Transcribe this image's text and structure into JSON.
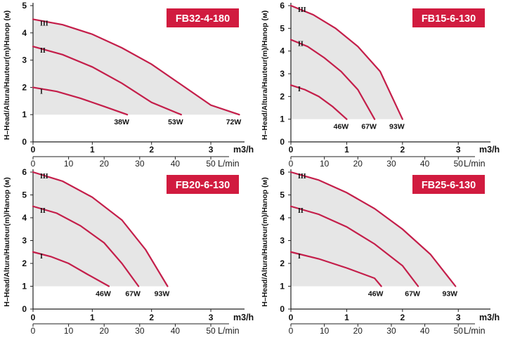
{
  "chart_data": [
    {
      "type": "line",
      "model": "FB32-4-180",
      "ylabel": "H–Head/Altura/Hauteur(m)/Hanop (м)",
      "x_m3h": {
        "label": "m3/h",
        "ticks": [
          0,
          1,
          2,
          3
        ],
        "lim": [
          0,
          3.45
        ]
      },
      "x_lmin": {
        "label": "L/min",
        "ticks": [
          0,
          10,
          20,
          30,
          40,
          50
        ],
        "lim": [
          0,
          57.5
        ]
      },
      "ylim": [
        0,
        5
      ],
      "yticks": [
        0,
        1,
        2,
        3,
        4,
        5
      ],
      "series": [
        {
          "name": "I",
          "power": "38W",
          "points": [
            [
              0,
              2.0
            ],
            [
              0.4,
              1.85
            ],
            [
              0.8,
              1.6
            ],
            [
              1.2,
              1.3
            ],
            [
              1.59,
              1.0
            ]
          ]
        },
        {
          "name": "II",
          "power": "53W",
          "points": [
            [
              0,
              3.5
            ],
            [
              0.5,
              3.2
            ],
            [
              1.0,
              2.75
            ],
            [
              1.5,
              2.15
            ],
            [
              2.0,
              1.45
            ],
            [
              2.5,
              1.0
            ]
          ]
        },
        {
          "name": "III",
          "power": "72W",
          "points": [
            [
              0,
              4.5
            ],
            [
              0.5,
              4.3
            ],
            [
              1.0,
              3.95
            ],
            [
              1.5,
              3.45
            ],
            [
              2.0,
              2.85
            ],
            [
              2.5,
              2.1
            ],
            [
              3.0,
              1.35
            ],
            [
              3.48,
              1.0
            ]
          ]
        }
      ]
    },
    {
      "type": "line",
      "model": "FB15-6-130",
      "ylabel": "H–Head/Altura/Hauteur(m)/Hanop (м)",
      "x_m3h": {
        "label": "m3/h",
        "ticks": [
          0,
          1,
          2,
          3
        ],
        "lim": [
          0,
          3.45
        ]
      },
      "x_lmin": {
        "label": "L/min",
        "ticks": [
          0,
          10,
          20,
          30,
          40,
          50
        ],
        "lim": [
          0,
          57.5
        ]
      },
      "ylim": [
        0,
        6
      ],
      "yticks": [
        0,
        1,
        2,
        3,
        4,
        5,
        6
      ],
      "series": [
        {
          "name": "I",
          "power": "46W",
          "points": [
            [
              0,
              2.5
            ],
            [
              0.25,
              2.3
            ],
            [
              0.5,
              2.0
            ],
            [
              0.75,
              1.55
            ],
            [
              1.0,
              1.0
            ]
          ]
        },
        {
          "name": "II",
          "power": "67W",
          "points": [
            [
              0,
              4.5
            ],
            [
              0.3,
              4.2
            ],
            [
              0.6,
              3.7
            ],
            [
              0.9,
              3.1
            ],
            [
              1.2,
              2.3
            ],
            [
              1.5,
              1.0
            ]
          ]
        },
        {
          "name": "III",
          "power": "93W",
          "points": [
            [
              0,
              6.0
            ],
            [
              0.4,
              5.6
            ],
            [
              0.8,
              5.0
            ],
            [
              1.2,
              4.2
            ],
            [
              1.6,
              3.1
            ],
            [
              2.0,
              1.0
            ]
          ]
        }
      ]
    },
    {
      "type": "line",
      "model": "FB20-6-130",
      "ylabel": "H–Head/Altura/Hauteur(m)/Hanop (м)",
      "x_m3h": {
        "label": "m3/h",
        "ticks": [
          0,
          1,
          2,
          3
        ],
        "lim": [
          0,
          3.45
        ]
      },
      "x_lmin": {
        "label": "L/min",
        "ticks": [
          0,
          10,
          20,
          30,
          40,
          50
        ],
        "lim": [
          0,
          57.5
        ]
      },
      "ylim": [
        0,
        6
      ],
      "yticks": [
        0,
        1,
        2,
        3,
        4,
        5,
        6
      ],
      "series": [
        {
          "name": "I",
          "power": "46W",
          "points": [
            [
              0,
              2.5
            ],
            [
              0.3,
              2.3
            ],
            [
              0.6,
              2.0
            ],
            [
              0.9,
              1.55
            ],
            [
              1.28,
              1.0
            ]
          ]
        },
        {
          "name": "II",
          "power": "67W",
          "points": [
            [
              0,
              4.5
            ],
            [
              0.4,
              4.2
            ],
            [
              0.8,
              3.65
            ],
            [
              1.2,
              2.9
            ],
            [
              1.5,
              2.0
            ],
            [
              1.78,
              1.0
            ]
          ]
        },
        {
          "name": "III",
          "power": "93W",
          "points": [
            [
              0,
              6.0
            ],
            [
              0.5,
              5.6
            ],
            [
              1.0,
              4.9
            ],
            [
              1.5,
              3.9
            ],
            [
              1.9,
              2.6
            ],
            [
              2.27,
              1.0
            ]
          ]
        }
      ]
    },
    {
      "type": "line",
      "model": "FB25-6-130",
      "ylabel": "H–Head/Altura/Hauteur(m)/Hanop (м)",
      "x_m3h": {
        "label": "m3/h",
        "ticks": [
          0,
          1,
          2,
          3
        ],
        "lim": [
          0,
          3.45
        ]
      },
      "x_lmin": {
        "label": "L/min",
        "ticks": [
          0,
          10,
          20,
          30,
          40,
          50
        ],
        "lim": [
          0,
          57.5
        ]
      },
      "ylim": [
        0,
        6
      ],
      "yticks": [
        0,
        1,
        2,
        3,
        4,
        5,
        6
      ],
      "series": [
        {
          "name": "I",
          "power": "46W",
          "points": [
            [
              0,
              2.5
            ],
            [
              0.5,
              2.2
            ],
            [
              1.0,
              1.8
            ],
            [
              1.5,
              1.35
            ],
            [
              1.62,
              1.0
            ]
          ]
        },
        {
          "name": "II",
          "power": "67W",
          "points": [
            [
              0,
              4.5
            ],
            [
              0.5,
              4.15
            ],
            [
              1.0,
              3.6
            ],
            [
              1.5,
              2.85
            ],
            [
              2.0,
              1.9
            ],
            [
              2.28,
              1.0
            ]
          ]
        },
        {
          "name": "III",
          "power": "93W",
          "points": [
            [
              0,
              6.0
            ],
            [
              0.5,
              5.65
            ],
            [
              1.0,
              5.1
            ],
            [
              1.5,
              4.4
            ],
            [
              2.0,
              3.5
            ],
            [
              2.5,
              2.4
            ],
            [
              2.95,
              1.0
            ]
          ]
        }
      ]
    }
  ],
  "colors": {
    "curve": "#c41e4a",
    "badge": "#d11b3f",
    "badge_text": "#ffffff",
    "fill": "#e6e6e6",
    "axis": "#222222"
  }
}
